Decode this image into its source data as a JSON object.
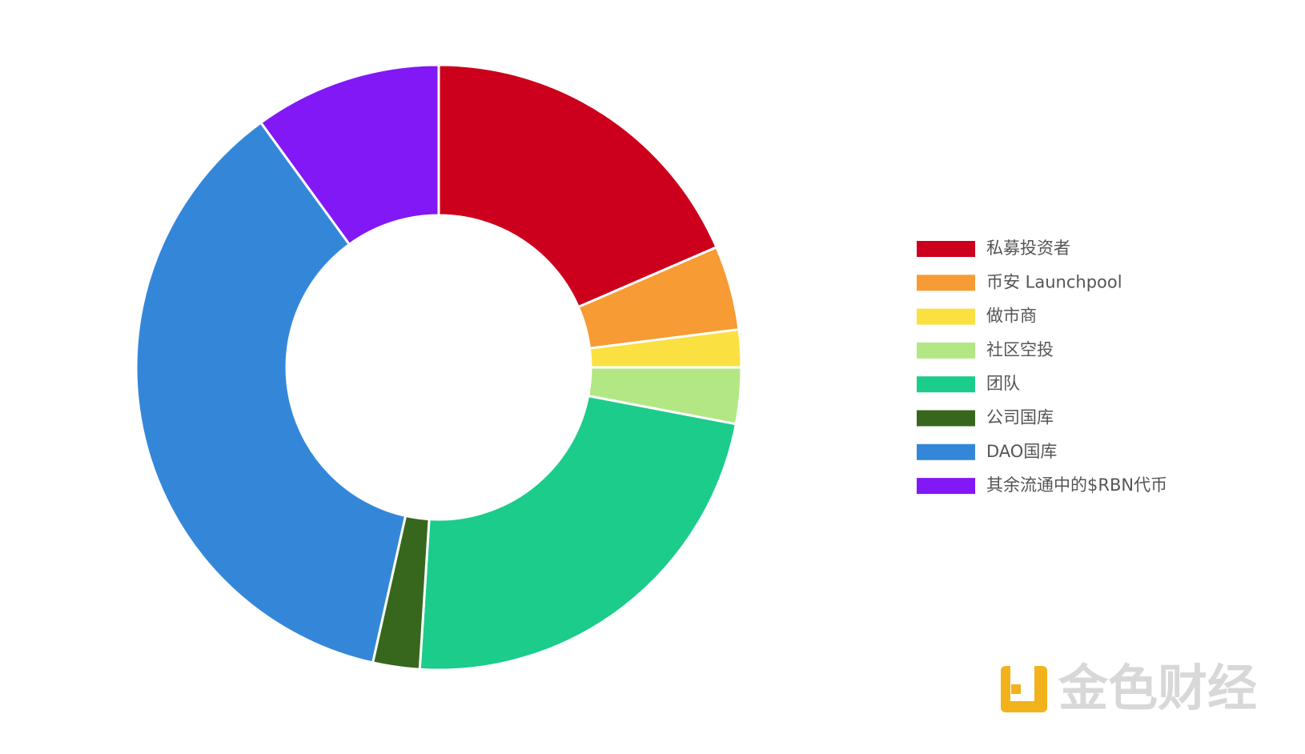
{
  "chart_data": {
    "type": "donut",
    "categories": [
      "私募投资者",
      "币安 Launchpool",
      "做市商",
      "社区空投",
      "团队",
      "公司国库",
      "DAO国库",
      "其余流通中的$RBN代币"
    ],
    "values": [
      18.5,
      4.5,
      2,
      3,
      23,
      2.5,
      36.5,
      10
    ],
    "colors": [
      "#cc001c",
      "#f79b34",
      "#fbe042",
      "#b3e784",
      "#1bcc8b",
      "#37671c",
      "#3487d8",
      "#8118f5"
    ],
    "legend": "right"
  },
  "watermark": "金色财经"
}
